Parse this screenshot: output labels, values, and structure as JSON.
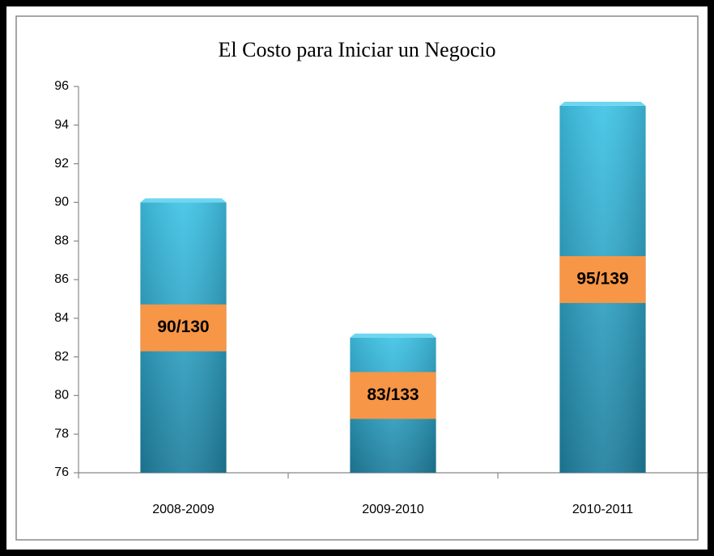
{
  "chart_data": {
    "type": "bar",
    "title": "El Costo para Iniciar un Negocio",
    "categories": [
      "2008-2009",
      "2009-2010",
      "2010-2011"
    ],
    "values": [
      90,
      83,
      95
    ],
    "value_labels": [
      "90/130",
      "83/133",
      "95/139"
    ],
    "color": "#31b0d4",
    "label_color": "#f79646",
    "ylim": [
      76,
      96
    ],
    "yticks": [
      76,
      78,
      80,
      82,
      84,
      86,
      88,
      90,
      92,
      94,
      96
    ],
    "grid": false
  }
}
